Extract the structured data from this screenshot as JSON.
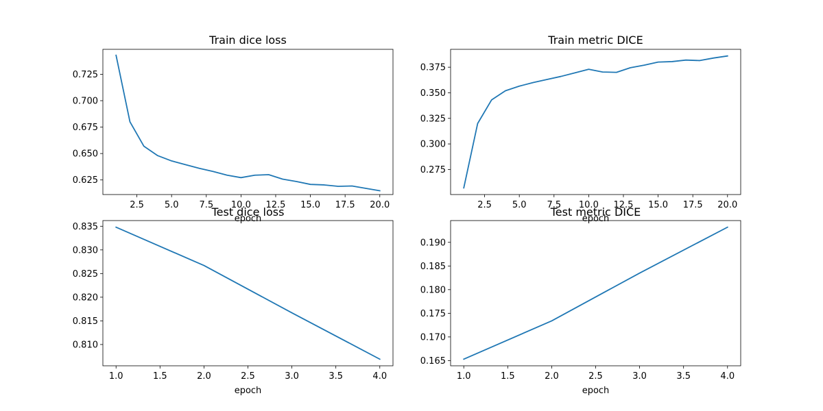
{
  "figure": {
    "background": "#ffffff",
    "line_color": "#1f77b4"
  },
  "chart_data": [
    {
      "type": "line",
      "title": "Train dice loss",
      "xlabel": "epoch",
      "ylabel": "",
      "x": [
        1,
        2,
        3,
        4,
        5,
        6,
        7,
        8,
        9,
        10,
        11,
        12,
        13,
        14,
        15,
        16,
        17,
        18,
        19,
        20
      ],
      "series": [
        {
          "name": "train dice loss",
          "values": [
            0.743,
            0.68,
            0.657,
            0.648,
            0.643,
            0.6395,
            0.636,
            0.633,
            0.6295,
            0.6272,
            0.6295,
            0.63,
            0.6258,
            0.6235,
            0.6208,
            0.6203,
            0.619,
            0.6193,
            0.617,
            0.6148
          ]
        }
      ],
      "xlim": [
        0.05,
        20.95
      ],
      "ylim": [
        0.6112,
        0.7486
      ],
      "xticks": [
        2.5,
        5.0,
        7.5,
        10.0,
        12.5,
        15.0,
        17.5,
        20.0
      ],
      "xtick_labels": [
        "2.5",
        "5.0",
        "7.5",
        "10.0",
        "12.5",
        "15.0",
        "17.5",
        "20.0"
      ],
      "yticks": [
        0.625,
        0.65,
        0.675,
        0.7,
        0.725
      ],
      "ytick_labels": [
        "0.625",
        "0.650",
        "0.675",
        "0.700",
        "0.725"
      ]
    },
    {
      "type": "line",
      "title": "Train metric DICE",
      "xlabel": "epoch",
      "ylabel": "",
      "x": [
        1,
        2,
        3,
        4,
        5,
        6,
        7,
        8,
        9,
        10,
        11,
        12,
        13,
        14,
        15,
        16,
        17,
        18,
        19,
        20
      ],
      "series": [
        {
          "name": "train metric DICE",
          "values": [
            0.257,
            0.32,
            0.343,
            0.352,
            0.3565,
            0.36,
            0.363,
            0.366,
            0.3695,
            0.373,
            0.3703,
            0.37,
            0.3745,
            0.377,
            0.38,
            0.3805,
            0.382,
            0.3815,
            0.384,
            0.386
          ]
        }
      ],
      "xlim": [
        0.05,
        20.95
      ],
      "ylim": [
        0.2505,
        0.3925
      ],
      "xticks": [
        2.5,
        5.0,
        7.5,
        10.0,
        12.5,
        15.0,
        17.5,
        20.0
      ],
      "xtick_labels": [
        "2.5",
        "5.0",
        "7.5",
        "10.0",
        "12.5",
        "15.0",
        "17.5",
        "20.0"
      ],
      "yticks": [
        0.275,
        0.3,
        0.325,
        0.35,
        0.375
      ],
      "ytick_labels": [
        "0.275",
        "0.300",
        "0.325",
        "0.350",
        "0.375"
      ]
    },
    {
      "type": "line",
      "title": "Test dice loss",
      "xlabel": "epoch",
      "ylabel": "",
      "x": [
        1,
        2,
        3,
        4
      ],
      "series": [
        {
          "name": "test dice loss",
          "values": [
            0.8348,
            0.8267,
            0.8167,
            0.8069
          ]
        }
      ],
      "xlim": [
        0.85,
        4.15
      ],
      "ylim": [
        0.8055,
        0.8362
      ],
      "xticks": [
        1.0,
        1.5,
        2.0,
        2.5,
        3.0,
        3.5,
        4.0
      ],
      "xtick_labels": [
        "1.0",
        "1.5",
        "2.0",
        "2.5",
        "3.0",
        "3.5",
        "4.0"
      ],
      "yticks": [
        0.81,
        0.815,
        0.82,
        0.825,
        0.83,
        0.835
      ],
      "ytick_labels": [
        "0.810",
        "0.815",
        "0.820",
        "0.825",
        "0.830",
        "0.835"
      ]
    },
    {
      "type": "line",
      "title": "Test metric DICE",
      "xlabel": "epoch",
      "ylabel": "",
      "x": [
        1,
        2,
        3,
        4
      ],
      "series": [
        {
          "name": "test metric DICE",
          "values": [
            0.1653,
            0.1734,
            0.1835,
            0.1932
          ]
        }
      ],
      "xlim": [
        0.85,
        4.15
      ],
      "ylim": [
        0.1639,
        0.1946
      ],
      "xticks": [
        1.0,
        1.5,
        2.0,
        2.5,
        3.0,
        3.5,
        4.0
      ],
      "xtick_labels": [
        "1.0",
        "1.5",
        "2.0",
        "2.5",
        "3.0",
        "3.5",
        "4.0"
      ],
      "yticks": [
        0.165,
        0.17,
        0.175,
        0.18,
        0.185,
        0.19
      ],
      "ytick_labels": [
        "0.165",
        "0.170",
        "0.175",
        "0.180",
        "0.185",
        "0.190"
      ]
    }
  ]
}
